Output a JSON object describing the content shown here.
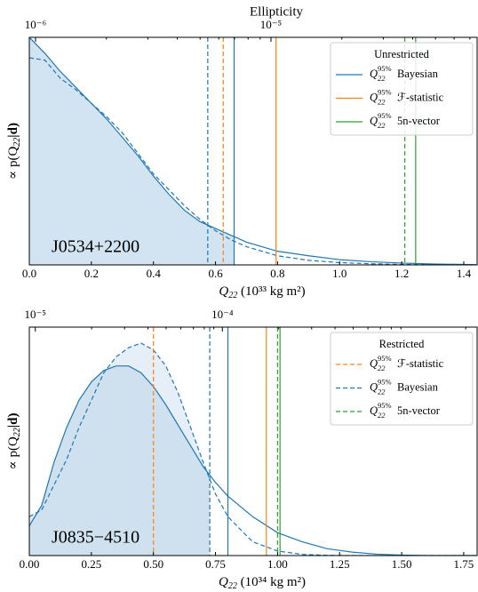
{
  "chart_data": [
    {
      "type": "line",
      "x2label": "Ellipticity",
      "x2scale": "log",
      "x2lim": [
        9.41e-07,
        7.51e-05
      ],
      "x2ticks": [
        {
          "value": 1e-06,
          "label": "10⁻⁶"
        },
        {
          "value": 1e-05,
          "label": "10⁻⁵"
        }
      ],
      "xlabel": {
        "symbol": "Q",
        "sub": "22",
        "unit": " (10³³ kg m²)"
      },
      "ylabel": [
        "∝ p(Q",
        "22",
        "|d)"
      ],
      "xlim": [
        0,
        1.443
      ],
      "ylim": [
        0,
        1
      ],
      "xticks": [
        {
          "value": 0,
          "label": "0.0"
        },
        0.2,
        0.4,
        0.6,
        0.8,
        {
          "value": 1,
          "label": "1.0"
        },
        1.2,
        1.4
      ],
      "x": [
        0,
        0.05,
        0.1,
        0.15,
        0.2,
        0.25,
        0.3,
        0.35,
        0.4,
        0.45,
        0.5,
        0.55,
        0.6,
        0.65,
        0.7,
        0.8,
        0.9,
        1.0,
        1.1,
        1.2,
        1.3,
        1.4,
        1.44
      ],
      "curves": [
        {
          "style": "solid",
          "color": "#1f77b4",
          "values": [
            1.0,
            0.93,
            0.85,
            0.78,
            0.71,
            0.64,
            0.56,
            0.48,
            0.39,
            0.31,
            0.24,
            0.19,
            0.16,
            0.13,
            0.1,
            0.06,
            0.04,
            0.023,
            0.014,
            0.008,
            0.004,
            0.002,
            0.001
          ]
        },
        {
          "style": "dashed",
          "color": "#1f77b4",
          "values": [
            0.91,
            0.9,
            0.82,
            0.77,
            0.71,
            0.65,
            0.58,
            0.49,
            0.4,
            0.33,
            0.26,
            0.2,
            0.15,
            0.11,
            0.08,
            0.04,
            0.02,
            0.01,
            0.005,
            0.002,
            0.001,
            0,
            0
          ]
        }
      ],
      "vline_symbol": {
        "base": "Q",
        "sub": "22",
        "sup": "95%"
      },
      "vlines": [
        {
          "name": "Bayesian",
          "style": "dashed",
          "color": "#1f77b4",
          "value": 0.575
        },
        {
          "name": "ℱ-statistic",
          "style": "dashed",
          "color": "#ff7f0e",
          "value": 0.625
        },
        {
          "name": "Bayesian",
          "style": "solid",
          "color": "#1f77b4",
          "value": 0.66
        },
        {
          "name": "ℱ-statistic",
          "style": "solid",
          "color": "#ff7f0e",
          "value": 0.795
        },
        {
          "name": "5n-vector",
          "style": "dashed",
          "color": "#2ca02c",
          "value": 1.21
        },
        {
          "name": "5n-vector",
          "style": "solid",
          "color": "#2ca02c",
          "value": 1.245
        }
      ],
      "legend_title": "Unrestricted",
      "legend_style": "solid",
      "legend_position": "upper right",
      "annotation": "J0534+2200"
    },
    {
      "type": "line",
      "x2scale": "log",
      "x2lim": [
        9.29e-06,
        0.0023
      ],
      "x2ticks": [
        {
          "value": 1e-05,
          "label": "10⁻⁵"
        },
        {
          "value": 0.0001,
          "label": "10⁻⁴"
        }
      ],
      "xlabel": {
        "symbol": "Q",
        "sub": "22",
        "unit": " (10³⁴ kg m²)"
      },
      "ylabel": [
        "∝ p(Q",
        "22",
        "|d)"
      ],
      "xlim": [
        0,
        1.804
      ],
      "ylim": [
        0,
        1
      ],
      "xticks": [
        {
          "value": 0,
          "label": "0.00"
        },
        0.25,
        {
          "value": 0.5,
          "label": "0.50"
        },
        0.75,
        {
          "value": 1,
          "label": "1.00"
        },
        1.25,
        {
          "value": 1.5,
          "label": "1.50"
        },
        1.75
      ],
      "x": [
        0,
        0.05,
        0.1,
        0.15,
        0.2,
        0.25,
        0.3,
        0.35,
        0.4,
        0.45,
        0.5,
        0.55,
        0.6,
        0.65,
        0.7,
        0.75,
        0.8,
        0.9,
        1.0,
        1.1,
        1.2,
        1.3,
        1.4,
        1.5,
        1.6,
        1.8
      ],
      "curves": [
        {
          "style": "solid",
          "color": "#1f77b4",
          "values": [
            0.13,
            0.22,
            0.41,
            0.56,
            0.68,
            0.76,
            0.81,
            0.83,
            0.83,
            0.8,
            0.74,
            0.66,
            0.57,
            0.48,
            0.39,
            0.32,
            0.26,
            0.17,
            0.1,
            0.06,
            0.03,
            0.015,
            0.006,
            0.002,
            0,
            0
          ]
        },
        {
          "style": "dashed",
          "color": "#1f77b4",
          "values": [
            0.17,
            0.2,
            0.31,
            0.42,
            0.56,
            0.68,
            0.8,
            0.87,
            0.91,
            0.93,
            0.9,
            0.83,
            0.71,
            0.56,
            0.41,
            0.27,
            0.17,
            0.06,
            0.02,
            0.005,
            0.001,
            0,
            0,
            0,
            0,
            0
          ]
        }
      ],
      "vline_symbol": {
        "base": "Q",
        "sub": "22",
        "sup": "95%"
      },
      "vlines": [
        {
          "name": "ℱ-statistic",
          "style": "dashed",
          "color": "#ff7f0e",
          "value": 0.5
        },
        {
          "name": "Bayesian",
          "style": "dashed",
          "color": "#1f77b4",
          "value": 0.727
        },
        {
          "name": "Bayesian",
          "style": "solid",
          "color": "#1f77b4",
          "value": 0.8
        },
        {
          "name": "ℱ-statistic",
          "style": "solid",
          "color": "#ff7f0e",
          "value": 0.955
        },
        {
          "name": "5n-vector",
          "style": "dashed",
          "color": "#2ca02c",
          "value": 1.0
        },
        {
          "name": "5n-vector",
          "style": "solid",
          "color": "#2ca02c",
          "value": 1.01
        }
      ],
      "legend_title": "Restricted",
      "legend_style": "dashed",
      "legend_position": "upper right",
      "annotation": "J0835−4510"
    }
  ]
}
